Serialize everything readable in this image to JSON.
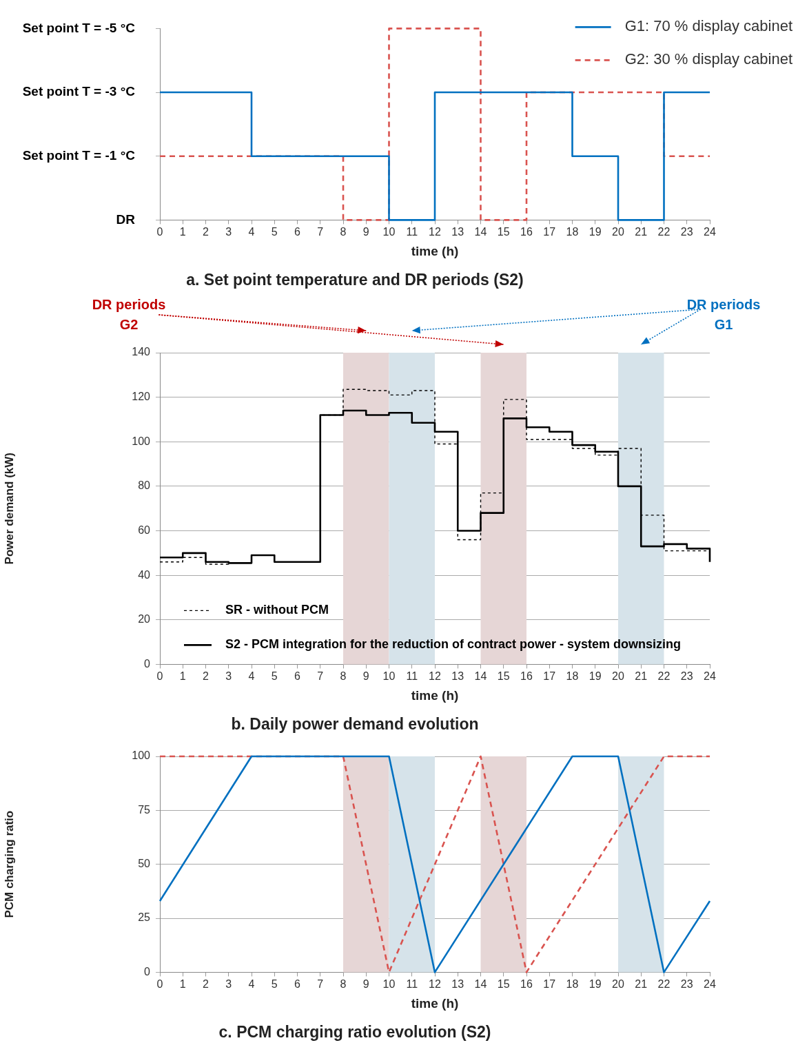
{
  "chart_data": [
    {
      "type": "step",
      "title": "a. Set point temperature and DR periods (S2)",
      "xlabel": "time (h)",
      "xlim": [
        0,
        24
      ],
      "xticks": [
        0,
        1,
        2,
        3,
        4,
        5,
        6,
        7,
        8,
        9,
        10,
        11,
        12,
        13,
        14,
        15,
        16,
        17,
        18,
        19,
        20,
        21,
        22,
        23,
        24
      ],
      "ylim": [
        1,
        -5
      ],
      "yticks": [
        {
          "value": 1,
          "label": "DR"
        },
        {
          "value": -1,
          "label": "Set point T = -1 °C"
        },
        {
          "value": -3,
          "label": "Set point T = -3 °C"
        },
        {
          "value": -5,
          "label": "Set point T = -5 °C"
        }
      ],
      "grid": false,
      "legend": "top right",
      "marker": "none",
      "series": [
        {
          "name": "G1: 70 % display cabinet",
          "color": "#0070c0",
          "line_style": "solid",
          "x": [
            0,
            4,
            10,
            12,
            18,
            20,
            22,
            24
          ],
          "values": [
            -3,
            -1,
            1,
            -3,
            -1,
            1,
            -3,
            -3
          ]
        },
        {
          "name": "G2: 30 % display cabinet",
          "color": "#d9534f",
          "line_style": "dashed",
          "x": [
            0,
            8,
            10,
            14,
            16,
            22,
            24
          ],
          "values": [
            -1,
            1,
            -5,
            1,
            -3,
            -1,
            -1
          ]
        }
      ]
    },
    {
      "type": "step",
      "title": "b. Daily power demand evolution",
      "xlabel": "time (h)",
      "ylabel": "Power demand (kW)",
      "xlim": [
        0,
        24
      ],
      "xticks": [
        0,
        1,
        2,
        3,
        4,
        5,
        6,
        7,
        8,
        9,
        10,
        11,
        12,
        13,
        14,
        15,
        16,
        17,
        18,
        19,
        20,
        21,
        22,
        23,
        24
      ],
      "ylim": [
        0,
        140
      ],
      "yticks": [
        0,
        20,
        40,
        60,
        80,
        100,
        120,
        140
      ],
      "grid": "y",
      "legend": "bottom left",
      "marker": "none",
      "annotations": [
        "DR periods\nG2",
        "DR periods\nG1"
      ],
      "bands": [
        {
          "axis": "x",
          "from": 8,
          "to": 10,
          "color": "#e6d6d6"
        },
        {
          "axis": "x",
          "from": 10,
          "to": 12,
          "color": "#d6e3ea"
        },
        {
          "axis": "x",
          "from": 14,
          "to": 16,
          "color": "#e6d6d6"
        },
        {
          "axis": "x",
          "from": 20,
          "to": 22,
          "color": "#d6e3ea"
        }
      ],
      "series": [
        {
          "name": "SR - without PCM",
          "color": "#000000",
          "line_style": "dashed",
          "x": [
            0,
            1,
            2,
            3,
            4,
            5,
            6,
            7,
            8,
            9,
            10,
            11,
            12,
            13,
            14,
            15,
            16,
            17,
            18,
            19,
            20,
            21,
            22,
            23,
            24
          ],
          "values": [
            46,
            48,
            45,
            45.5,
            49,
            46,
            46,
            112,
            123.5,
            123,
            121,
            123,
            99,
            56,
            77,
            119,
            101,
            101,
            97,
            94,
            97,
            67,
            51,
            51,
            51
          ]
        },
        {
          "name": "S2 - PCM integration for the reduction of contract power - system downsizing",
          "color": "#000000",
          "line_style": "solid",
          "x": [
            0,
            1,
            2,
            3,
            4,
            5,
            6,
            7,
            8,
            9,
            10,
            11,
            12,
            13,
            14,
            15,
            16,
            17,
            18,
            19,
            20,
            21,
            22,
            23,
            24
          ],
          "values": [
            48,
            50,
            46,
            45.5,
            49,
            46,
            46,
            112,
            114,
            112,
            113,
            108.5,
            104.5,
            60,
            68,
            110.5,
            106.5,
            104.5,
            98.5,
            95.5,
            80,
            53,
            54,
            52,
            46
          ]
        }
      ]
    },
    {
      "type": "line",
      "title": "c. PCM charging ratio evolution (S2)",
      "xlabel": "time (h)",
      "ylabel": "PCM charging ratio",
      "xlim": [
        0,
        24
      ],
      "xticks": [
        0,
        1,
        2,
        3,
        4,
        5,
        6,
        7,
        8,
        9,
        10,
        11,
        12,
        13,
        14,
        15,
        16,
        17,
        18,
        19,
        20,
        21,
        22,
        23,
        24
      ],
      "ylim": [
        0,
        100
      ],
      "yticks": [
        0,
        25,
        50,
        75,
        100
      ],
      "grid": "y",
      "marker": "none",
      "bands": [
        {
          "axis": "x",
          "from": 8,
          "to": 10,
          "color": "#e6d6d6"
        },
        {
          "axis": "x",
          "from": 10,
          "to": 12,
          "color": "#d6e3ea"
        },
        {
          "axis": "x",
          "from": 14,
          "to": 16,
          "color": "#e6d6d6"
        },
        {
          "axis": "x",
          "from": 20,
          "to": 22,
          "color": "#d6e3ea"
        }
      ],
      "series": [
        {
          "color": "#0070c0",
          "line_style": "solid",
          "x": [
            0,
            4,
            10,
            12,
            18,
            20,
            22,
            24
          ],
          "values": [
            33,
            100,
            100,
            0,
            100,
            100,
            0,
            33
          ]
        },
        {
          "color": "#d9534f",
          "line_style": "dashed",
          "x": [
            0,
            8,
            10,
            14,
            16,
            22,
            24
          ],
          "values": [
            100,
            100,
            0,
            100,
            0,
            100,
            100
          ]
        }
      ]
    }
  ]
}
